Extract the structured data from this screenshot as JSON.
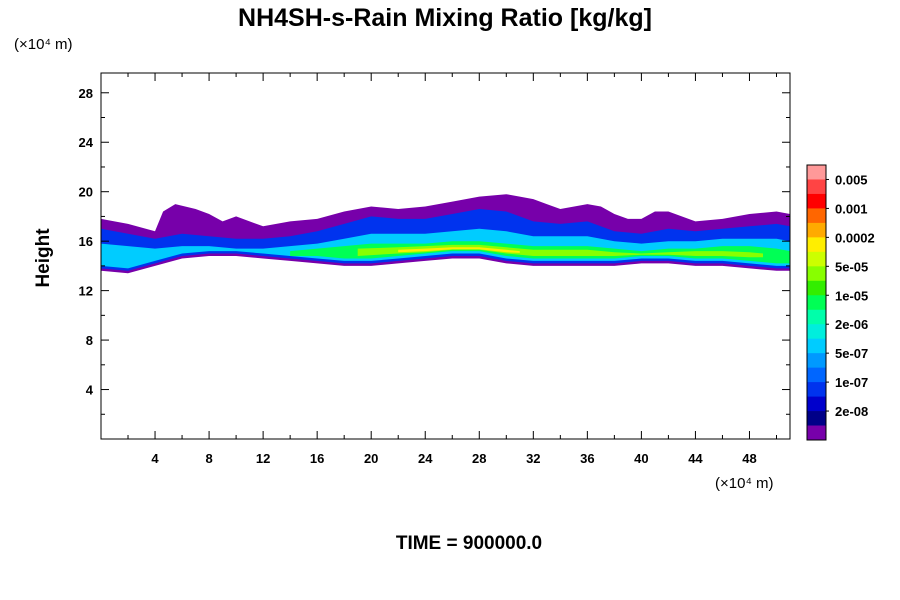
{
  "chart_data": {
    "type": "heatmap",
    "title": "NH4SH-s-Rain Mixing Ratio [kg/kg]",
    "xlabel": "",
    "ylabel": "Height",
    "x_unit": "(×10⁴ m)",
    "y_unit": "(×10⁴ m)",
    "xlim": [
      0,
      51
    ],
    "ylim": [
      0,
      29.6
    ],
    "x_ticks": [
      4,
      8,
      12,
      16,
      20,
      24,
      28,
      32,
      36,
      40,
      44,
      48
    ],
    "y_ticks": [
      4,
      8,
      12,
      16,
      20,
      24,
      28
    ],
    "colorbar": {
      "labels": [
        "0.005",
        "0.001",
        "0.0002",
        "5e-05",
        "1e-05",
        "2e-06",
        "5e-07",
        "1e-07",
        "2e-08"
      ],
      "colors": [
        "#ff9999",
        "#ff4444",
        "#ff0000",
        "#ff6600",
        "#ffaa00",
        "#ffee00",
        "#ccff00",
        "#88ff00",
        "#33ee00",
        "#00ff55",
        "#00ffaa",
        "#00eedd",
        "#00ccff",
        "#0099ff",
        "#0066ff",
        "#0033ee",
        "#0000cc",
        "#000088",
        "#7700aa"
      ]
    },
    "layers": [
      {
        "level": "2e-08",
        "color": "#7700aa",
        "top": [
          [
            0,
            17.8
          ],
          [
            2,
            17.4
          ],
          [
            4,
            16.8
          ],
          [
            4.6,
            18.4
          ],
          [
            5.5,
            19
          ],
          [
            7,
            18.6
          ],
          [
            8,
            18.2
          ],
          [
            9,
            17.6
          ],
          [
            10,
            18
          ],
          [
            11,
            17.6
          ],
          [
            12,
            17.2
          ],
          [
            14,
            17.6
          ],
          [
            16,
            17.8
          ],
          [
            18,
            18.4
          ],
          [
            20,
            18.8
          ],
          [
            22,
            18.6
          ],
          [
            24,
            18.8
          ],
          [
            26,
            19.2
          ],
          [
            28,
            19.6
          ],
          [
            30,
            19.8
          ],
          [
            31,
            19.6
          ],
          [
            32,
            19.4
          ],
          [
            33,
            19
          ],
          [
            34,
            18.6
          ],
          [
            36,
            19
          ],
          [
            37,
            18.8
          ],
          [
            38,
            18.2
          ],
          [
            39,
            17.8
          ],
          [
            40,
            17.8
          ],
          [
            41,
            18.4
          ],
          [
            42,
            18.4
          ],
          [
            44,
            17.6
          ],
          [
            46,
            17.8
          ],
          [
            48,
            18.2
          ],
          [
            50,
            18.4
          ],
          [
            51,
            18.2
          ]
        ],
        "bottom": [
          [
            0,
            13.6
          ],
          [
            2,
            13.4
          ],
          [
            4,
            14
          ],
          [
            6,
            14.6
          ],
          [
            8,
            14.8
          ],
          [
            10,
            14.8
          ],
          [
            12,
            14.6
          ],
          [
            14,
            14.4
          ],
          [
            16,
            14.2
          ],
          [
            18,
            14
          ],
          [
            20,
            14
          ],
          [
            22,
            14.2
          ],
          [
            24,
            14.4
          ],
          [
            26,
            14.6
          ],
          [
            28,
            14.6
          ],
          [
            30,
            14.2
          ],
          [
            32,
            14
          ],
          [
            34,
            14
          ],
          [
            36,
            14
          ],
          [
            38,
            14
          ],
          [
            40,
            14.2
          ],
          [
            42,
            14.2
          ],
          [
            44,
            14
          ],
          [
            46,
            14
          ],
          [
            48,
            13.8
          ],
          [
            50,
            13.6
          ],
          [
            51,
            13.6
          ]
        ]
      },
      {
        "level": "1e-07",
        "color": "#0033ee",
        "top": [
          [
            0,
            17
          ],
          [
            2,
            16.6
          ],
          [
            4,
            16.2
          ],
          [
            6,
            16.6
          ],
          [
            8,
            16.4
          ],
          [
            10,
            16.2
          ],
          [
            12,
            16.2
          ],
          [
            14,
            16.4
          ],
          [
            16,
            16.8
          ],
          [
            18,
            17.4
          ],
          [
            20,
            18
          ],
          [
            22,
            17.8
          ],
          [
            24,
            17.8
          ],
          [
            26,
            18.2
          ],
          [
            28,
            18.6
          ],
          [
            30,
            18.4
          ],
          [
            32,
            17.6
          ],
          [
            34,
            17.4
          ],
          [
            36,
            17.6
          ],
          [
            38,
            16.8
          ],
          [
            40,
            16.6
          ],
          [
            42,
            17
          ],
          [
            44,
            16.8
          ],
          [
            46,
            17
          ],
          [
            48,
            17.2
          ],
          [
            50,
            17.4
          ],
          [
            51,
            17.2
          ]
        ],
        "bottom": [
          [
            0,
            13.8
          ],
          [
            2,
            13.6
          ],
          [
            4,
            14.2
          ],
          [
            6,
            14.8
          ],
          [
            8,
            15
          ],
          [
            10,
            15
          ],
          [
            12,
            14.8
          ],
          [
            14,
            14.6
          ],
          [
            16,
            14.4
          ],
          [
            18,
            14.2
          ],
          [
            20,
            14.2
          ],
          [
            22,
            14.4
          ],
          [
            24,
            14.6
          ],
          [
            26,
            14.8
          ],
          [
            28,
            14.8
          ],
          [
            30,
            14.4
          ],
          [
            32,
            14.2
          ],
          [
            34,
            14.2
          ],
          [
            36,
            14.2
          ],
          [
            38,
            14.2
          ],
          [
            40,
            14.4
          ],
          [
            42,
            14.4
          ],
          [
            44,
            14.2
          ],
          [
            46,
            14.2
          ],
          [
            48,
            14
          ],
          [
            50,
            13.8
          ],
          [
            51,
            13.8
          ]
        ]
      },
      {
        "level": "5e-07",
        "color": "#00ccff",
        "top": [
          [
            0,
            15.8
          ],
          [
            2,
            15.6
          ],
          [
            4,
            15.4
          ],
          [
            6,
            15.6
          ],
          [
            8,
            15.6
          ],
          [
            10,
            15.4
          ],
          [
            12,
            15.4
          ],
          [
            14,
            15.6
          ],
          [
            16,
            15.8
          ],
          [
            18,
            16.2
          ],
          [
            20,
            16.6
          ],
          [
            22,
            16.6
          ],
          [
            24,
            16.6
          ],
          [
            26,
            16.8
          ],
          [
            28,
            17
          ],
          [
            30,
            16.8
          ],
          [
            32,
            16.4
          ],
          [
            34,
            16.4
          ],
          [
            36,
            16.4
          ],
          [
            38,
            16
          ],
          [
            40,
            15.8
          ],
          [
            42,
            16
          ],
          [
            44,
            16
          ],
          [
            46,
            16.2
          ],
          [
            48,
            16.2
          ],
          [
            50,
            16.2
          ],
          [
            51,
            16
          ]
        ],
        "bottom": [
          [
            0,
            14
          ],
          [
            2,
            13.8
          ],
          [
            4,
            14.4
          ],
          [
            6,
            15
          ],
          [
            8,
            15.2
          ],
          [
            10,
            15.2
          ],
          [
            12,
            15
          ],
          [
            14,
            14.8
          ],
          [
            16,
            14.6
          ],
          [
            18,
            14.4
          ],
          [
            20,
            14.4
          ],
          [
            22,
            14.6
          ],
          [
            24,
            14.8
          ],
          [
            26,
            15
          ],
          [
            28,
            15
          ],
          [
            30,
            14.6
          ],
          [
            32,
            14.4
          ],
          [
            34,
            14.4
          ],
          [
            36,
            14.4
          ],
          [
            38,
            14.4
          ],
          [
            40,
            14.6
          ],
          [
            42,
            14.6
          ],
          [
            44,
            14.4
          ],
          [
            46,
            14.4
          ],
          [
            48,
            14.2
          ],
          [
            50,
            14
          ],
          [
            51,
            14
          ]
        ]
      },
      {
        "level": "2e-06",
        "color": "#00ff55",
        "top": [
          [
            14,
            15.2
          ],
          [
            16,
            15.4
          ],
          [
            18,
            15.6
          ],
          [
            20,
            15.8
          ],
          [
            22,
            15.8
          ],
          [
            24,
            15.8
          ],
          [
            26,
            16
          ],
          [
            28,
            16
          ],
          [
            30,
            15.8
          ],
          [
            32,
            15.6
          ],
          [
            34,
            15.6
          ],
          [
            36,
            15.6
          ],
          [
            38,
            15.4
          ],
          [
            40,
            15.2
          ],
          [
            42,
            15.4
          ],
          [
            44,
            15.4
          ],
          [
            46,
            15.6
          ],
          [
            48,
            15.6
          ],
          [
            50,
            15.4
          ],
          [
            51,
            15.2
          ]
        ],
        "bottom": [
          [
            14,
            14.8
          ],
          [
            16,
            14.8
          ],
          [
            18,
            14.6
          ],
          [
            20,
            14.6
          ],
          [
            22,
            14.8
          ],
          [
            24,
            15
          ],
          [
            26,
            15.2
          ],
          [
            28,
            15.2
          ],
          [
            30,
            14.8
          ],
          [
            32,
            14.6
          ],
          [
            34,
            14.6
          ],
          [
            36,
            14.6
          ],
          [
            38,
            14.6
          ],
          [
            40,
            14.8
          ],
          [
            42,
            14.8
          ],
          [
            44,
            14.6
          ],
          [
            46,
            14.6
          ],
          [
            48,
            14.4
          ],
          [
            50,
            14.2
          ],
          [
            51,
            14.2
          ]
        ]
      },
      {
        "level": "1e-05",
        "color": "#88ff00",
        "top": [
          [
            19,
            15.4
          ],
          [
            22,
            15.5
          ],
          [
            24,
            15.6
          ],
          [
            26,
            15.7
          ],
          [
            28,
            15.7
          ],
          [
            30,
            15.5
          ],
          [
            32,
            15.3
          ],
          [
            34,
            15.3
          ],
          [
            36,
            15.3
          ],
          [
            38,
            15.1
          ],
          [
            40,
            15
          ],
          [
            42,
            15.1
          ],
          [
            44,
            15.2
          ],
          [
            46,
            15.2
          ],
          [
            48,
            15.1
          ],
          [
            49,
            15
          ]
        ],
        "bottom": [
          [
            19,
            14.8
          ],
          [
            22,
            15
          ],
          [
            24,
            15.1
          ],
          [
            26,
            15.3
          ],
          [
            28,
            15.3
          ],
          [
            30,
            15
          ],
          [
            32,
            14.8
          ],
          [
            34,
            14.8
          ],
          [
            36,
            14.8
          ],
          [
            38,
            14.8
          ],
          [
            40,
            14.9
          ],
          [
            42,
            14.9
          ],
          [
            44,
            14.8
          ],
          [
            46,
            14.8
          ],
          [
            48,
            14.7
          ],
          [
            49,
            14.7
          ]
        ]
      },
      {
        "level": "5e-05",
        "color": "#ffee00",
        "top": [
          [
            22,
            15.3
          ],
          [
            24,
            15.4
          ],
          [
            26,
            15.5
          ],
          [
            28,
            15.5
          ],
          [
            30,
            15.3
          ],
          [
            31,
            15.2
          ]
        ],
        "bottom": [
          [
            22,
            15.1
          ],
          [
            24,
            15.2
          ],
          [
            26,
            15.35
          ],
          [
            28,
            15.35
          ],
          [
            30,
            15.1
          ],
          [
            31,
            15.05
          ]
        ]
      }
    ]
  },
  "time_label": "TIME = 900000.0"
}
